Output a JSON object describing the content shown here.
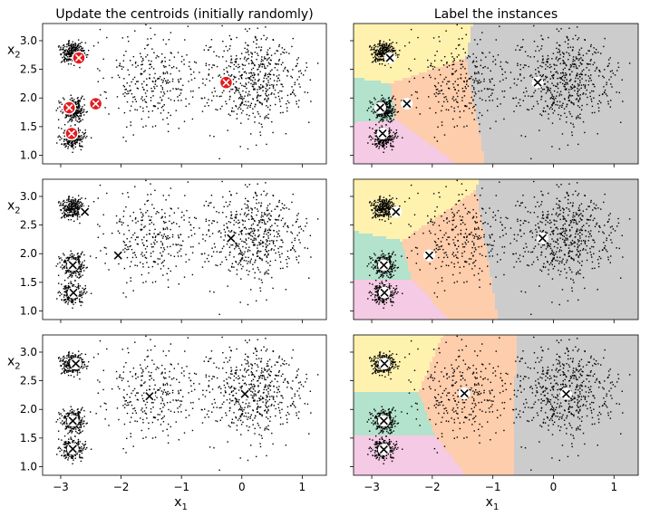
{
  "chart_data": {
    "type": "scatter",
    "description_free": true,
    "xlim": [
      -3.3,
      1.4
    ],
    "ylim": [
      0.85,
      3.3
    ],
    "xticks": [
      -3,
      -2,
      -1,
      0,
      1
    ],
    "xtick_labels": [
      "−3",
      "−2",
      "−1",
      "0",
      "1"
    ],
    "yticks": [
      1.0,
      1.5,
      2.0,
      2.5,
      3.0
    ],
    "ytick_labels": [
      "1.0",
      "1.5",
      "2.0",
      "2.5",
      "3.0"
    ],
    "xlabel": "x",
    "xlabel_sub": "1",
    "ylabel": "x",
    "ylabel_sub": "2",
    "region_colors": [
      "#b3e2cd",
      "#fdcdac",
      "#cbd5e8",
      "#f4cae4",
      "#fff2ae",
      "#cccccc"
    ],
    "blobs": [
      {
        "center": [
          -2.8,
          2.8
        ],
        "std": 0.1,
        "n": 260
      },
      {
        "center": [
          -2.8,
          1.3
        ],
        "std": 0.1,
        "n": 260
      },
      {
        "center": [
          -2.8,
          1.8
        ],
        "std": 0.1,
        "n": 260
      },
      {
        "center": [
          -1.5,
          2.3
        ],
        "std": 0.4,
        "n": 300
      },
      {
        "center": [
          0.2,
          2.3
        ],
        "std": 0.4,
        "n": 550
      }
    ],
    "panels": [
      {
        "title": "Update the centroids (initially randomly)",
        "show_regions": false,
        "centroid_style": "red",
        "centroids": [
          [
            -2.7,
            2.7
          ],
          [
            -2.42,
            1.9
          ],
          [
            -2.82,
            1.38
          ],
          [
            -2.86,
            1.83
          ],
          [
            -0.26,
            2.27
          ]
        ]
      },
      {
        "title": "Label the instances",
        "show_regions": true,
        "centroid_style": "cross",
        "centroids": [
          [
            -2.7,
            2.7
          ],
          [
            -2.42,
            1.9
          ],
          [
            -2.82,
            1.38
          ],
          [
            -2.86,
            1.83
          ],
          [
            -0.26,
            2.27
          ]
        ]
      },
      {
        "title": "",
        "show_regions": false,
        "centroid_style": "cross",
        "centroids": [
          [
            -2.6,
            2.73
          ],
          [
            -2.05,
            1.97
          ],
          [
            -2.79,
            1.32
          ],
          [
            -2.8,
            1.8
          ],
          [
            -0.18,
            2.27
          ]
        ]
      },
      {
        "title": "",
        "show_regions": true,
        "centroid_style": "cross",
        "centroids": [
          [
            -2.6,
            2.73
          ],
          [
            -2.05,
            1.97
          ],
          [
            -2.79,
            1.32
          ],
          [
            -2.8,
            1.8
          ],
          [
            -0.18,
            2.27
          ]
        ]
      },
      {
        "title": "",
        "show_regions": false,
        "centroid_style": "cross",
        "centroids": [
          [
            -2.75,
            2.8
          ],
          [
            -1.53,
            2.23
          ],
          [
            -2.8,
            1.31
          ],
          [
            -2.8,
            1.8
          ],
          [
            0.05,
            2.27
          ]
        ]
      },
      {
        "title": "",
        "show_regions": true,
        "centroid_style": "cross",
        "centroids": [
          [
            -2.79,
            2.8
          ],
          [
            -1.47,
            2.28
          ],
          [
            -2.8,
            1.3
          ],
          [
            -2.8,
            1.8
          ],
          [
            0.21,
            2.27
          ]
        ]
      }
    ]
  }
}
